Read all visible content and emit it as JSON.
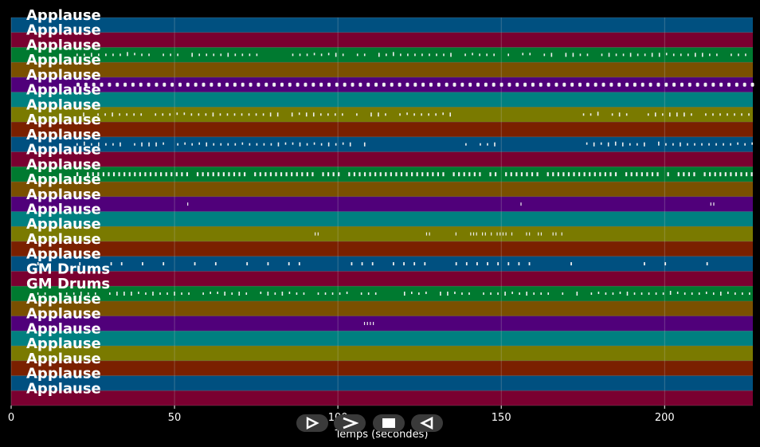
{
  "chart_data": {
    "type": "piano-roll",
    "xlabel": "Temps (secondes)",
    "xlim": [
      0,
      227
    ],
    "xticks": [
      0,
      50,
      100,
      150,
      200
    ],
    "grid": true,
    "track_colors": [
      "#005080",
      "#7a0030",
      "#007a30",
      "#7a5000",
      "#50007a",
      "#008080",
      "#7a7a00",
      "#7a2000"
    ],
    "tracks": [
      {
        "name": "Applause",
        "notes": []
      },
      {
        "name": "Applause",
        "notes": []
      },
      {
        "name": "Applause",
        "notes": [
          [
            20,
            227,
            "dense"
          ]
        ]
      },
      {
        "name": "Applause",
        "notes": []
      },
      {
        "name": "Applause",
        "notes": [
          [
            20,
            227,
            "dots"
          ]
        ]
      },
      {
        "name": "Applause",
        "notes": []
      },
      {
        "name": "Applause",
        "notes": [
          [
            22,
            136,
            "dense"
          ],
          [
            175,
            227,
            "dense"
          ]
        ]
      },
      {
        "name": "Applause",
        "notes": []
      },
      {
        "name": "Applause",
        "notes": [
          [
            20,
            110,
            "dense"
          ],
          [
            139,
            148,
            "dense"
          ],
          [
            176,
            227,
            "dense"
          ]
        ]
      },
      {
        "name": "Applause",
        "notes": []
      },
      {
        "name": "Applause",
        "notes": [
          [
            20,
            227,
            "thick"
          ]
        ]
      },
      {
        "name": "Applause",
        "notes": []
      },
      {
        "name": "Applause",
        "notes": [
          [
            53,
            55,
            "sparse"
          ],
          [
            74,
            75,
            "sparse"
          ],
          [
            155,
            156,
            "sparse"
          ],
          [
            194,
            195,
            "sparse"
          ],
          [
            214,
            215,
            "sparse"
          ]
        ]
      },
      {
        "name": "Applause",
        "notes": []
      },
      {
        "name": "Applause",
        "notes": [
          [
            37,
            39,
            "sparse"
          ],
          [
            92,
            94,
            "sparse"
          ],
          [
            127,
            128,
            "sparse"
          ],
          [
            136,
            172,
            "sparse"
          ]
        ]
      },
      {
        "name": "Applause",
        "notes": []
      },
      {
        "name": "Applause",
        "notes": [
          [
            8,
            227,
            "scatter"
          ]
        ]
      },
      {
        "name": "GM Drums",
        "notes": []
      },
      {
        "name": "GM Drums",
        "notes": [
          [
            8,
            227,
            "dense"
          ]
        ]
      },
      {
        "name": "Applause",
        "notes": []
      },
      {
        "name": "Applause",
        "notes": [
          [
            108,
            111,
            "sparse"
          ]
        ]
      },
      {
        "name": "Applause",
        "notes": []
      },
      {
        "name": "Applause",
        "notes": []
      },
      {
        "name": "Applause",
        "notes": []
      },
      {
        "name": "Applause",
        "notes": []
      },
      {
        "name": "Applause",
        "notes": []
      }
    ]
  },
  "controls": [
    {
      "name": "play-button",
      "icon": "play-outline-icon"
    },
    {
      "name": "next-button",
      "icon": "chevron-right-icon"
    },
    {
      "name": "stop-button",
      "icon": "stop-icon"
    },
    {
      "name": "previous-button",
      "icon": "triangle-left-icon"
    }
  ]
}
